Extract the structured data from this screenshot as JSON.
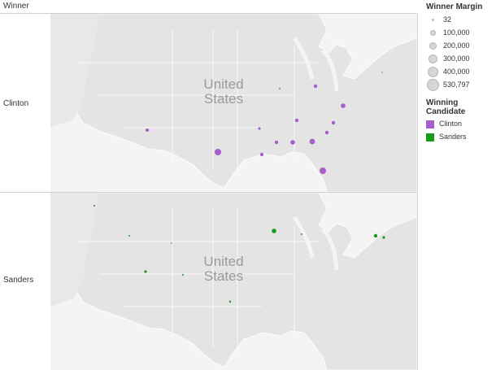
{
  "header": {
    "winner_label": "Winner"
  },
  "rows": [
    {
      "label": "Clinton",
      "country_label_line1": "United",
      "country_label_line2": "States"
    },
    {
      "label": "Sanders",
      "country_label_line1": "United",
      "country_label_line2": "States"
    }
  ],
  "legend": {
    "margin_title": "Winner Margin",
    "margin_items": [
      "32",
      "100,000",
      "200,000",
      "300,000",
      "400,000",
      "530,797"
    ],
    "candidate_title": "Winning Candidate",
    "candidates": [
      {
        "name": "Clinton",
        "color": "#a55fcb"
      },
      {
        "name": "Sanders",
        "color": "#1a9a1a"
      }
    ]
  },
  "colors": {
    "land": "#e4e4e4",
    "water": "#f4f4f4",
    "border": "#ffffff",
    "clinton": "#a55fcb",
    "sanders": "#1a9a1a",
    "country_label": "#9a9a9a"
  },
  "icons": {
    "size_legend": "circle-icon",
    "color_legend": "square-swatch-icon"
  }
}
